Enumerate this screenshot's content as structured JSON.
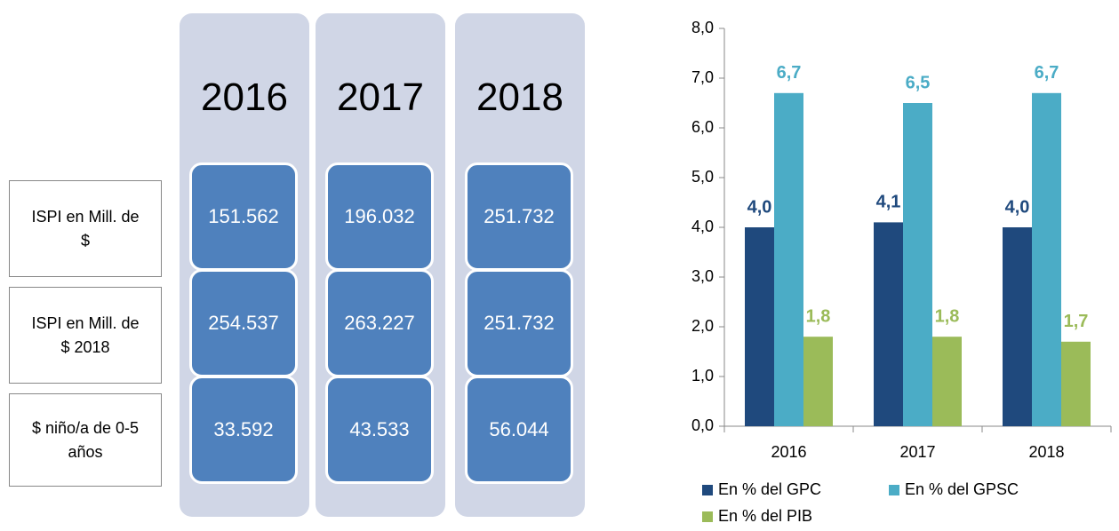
{
  "table": {
    "columns": [
      "2016",
      "2017",
      "2018"
    ],
    "rows": [
      {
        "label": "ISPI en Mill. de $",
        "values": [
          "151.562",
          "196.032",
          "251.732"
        ]
      },
      {
        "label": "ISPI en Mill. de $ 2018",
        "values": [
          "254.537",
          "263.227",
          "251.732"
        ]
      },
      {
        "label": "$ niño/a de 0-5 años",
        "values": [
          "33.592",
          "43.533",
          "56.044"
        ]
      }
    ]
  },
  "chart_data": {
    "type": "bar",
    "categories": [
      "2016",
      "2017",
      "2018"
    ],
    "series": [
      {
        "name": "En % del GPC",
        "color": "#1f497d",
        "values": [
          4.0,
          4.1,
          4.0
        ],
        "value_labels": [
          "4,0",
          "4,1",
          "4,0"
        ]
      },
      {
        "name": "En % del GPSC",
        "color": "#4bacc6",
        "values": [
          6.7,
          6.5,
          6.7
        ],
        "value_labels": [
          "6,7",
          "6,5",
          "6,7"
        ]
      },
      {
        "name": "En % del PIB",
        "color": "#9bbb59",
        "values": [
          1.8,
          1.8,
          1.7
        ],
        "value_labels": [
          "1,8",
          "1,8",
          "1,7"
        ]
      }
    ],
    "ylim": [
      0,
      8
    ],
    "yticks": [
      {
        "value": 0,
        "label": "0,0"
      },
      {
        "value": 1,
        "label": "1,0"
      },
      {
        "value": 2,
        "label": "2,0"
      },
      {
        "value": 3,
        "label": "3,0"
      },
      {
        "value": 4,
        "label": "4,0"
      },
      {
        "value": 5,
        "label": "5,0"
      },
      {
        "value": 6,
        "label": "6,0"
      },
      {
        "value": 7,
        "label": "7,0"
      },
      {
        "value": 8,
        "label": "8,0"
      }
    ],
    "grid": false,
    "legend": "bottom"
  }
}
